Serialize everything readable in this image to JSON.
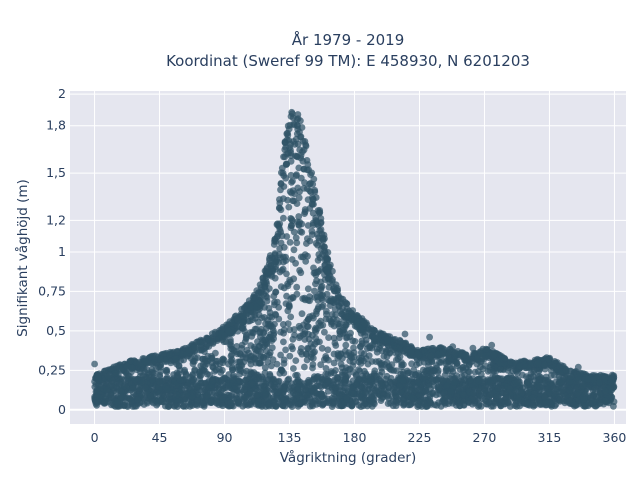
{
  "chart_data": {
    "type": "scatter",
    "title_line1": "År 1979 - 2019",
    "title_line2": "Koordinat (Sweref 99 TM): E 458930, N 6201203",
    "xlabel": "Vågriktning (grader)",
    "ylabel": "Signifikant våghöjd (m)",
    "xlim": [
      -17,
      368
    ],
    "ylim": [
      -0.09,
      2.02
    ],
    "x_ticks": [
      0,
      45,
      90,
      135,
      180,
      225,
      270,
      315,
      360
    ],
    "x_tick_labels": [
      "0",
      "45",
      "90",
      "135",
      "180",
      "225",
      "270",
      "315",
      "360"
    ],
    "y_ticks": [
      0,
      0.25,
      0.5,
      0.75,
      1,
      1.2,
      1.5,
      1.8,
      2
    ],
    "y_tick_labels": [
      "0",
      "0,25",
      "0,5",
      "0,75",
      "1",
      "1,2",
      "1,5",
      "1,8",
      "2"
    ],
    "grid": true,
    "legend": "none",
    "colors": {
      "marker": "#2f5366",
      "plot_background": "#e5e6ef",
      "grid": "#ffffff",
      "text": "#2a3f5f"
    },
    "envelope": {
      "note": "dense point cloud; upper envelope of observed Hs by direction",
      "x": [
        0,
        20,
        45,
        60,
        75,
        90,
        100,
        110,
        115,
        120,
        125,
        128,
        132,
        135,
        140,
        145,
        150,
        155,
        160,
        165,
        170,
        180,
        195,
        210,
        225,
        240,
        260,
        270,
        290,
        315,
        330,
        345,
        360
      ],
      "y_max": [
        0.22,
        0.3,
        0.35,
        0.38,
        0.45,
        0.53,
        0.62,
        0.72,
        0.8,
        0.92,
        1.1,
        1.4,
        1.72,
        1.88,
        1.9,
        1.78,
        1.55,
        1.32,
        1.05,
        0.88,
        0.72,
        0.62,
        0.5,
        0.45,
        0.38,
        0.4,
        0.35,
        0.4,
        0.3,
        0.33,
        0.25,
        0.22,
        0.22
      ],
      "y_min": [
        0.03,
        0.02,
        0.02,
        0.02,
        0.02,
        0.02,
        0.02,
        0.02,
        0.02,
        0.02,
        0.02,
        0.02,
        0.02,
        0.02,
        0.02,
        0.02,
        0.02,
        0.02,
        0.02,
        0.02,
        0.02,
        0.02,
        0.02,
        0.02,
        0.02,
        0.02,
        0.02,
        0.02,
        0.02,
        0.02,
        0.02,
        0.02,
        0.02
      ]
    },
    "outliers": [
      {
        "x": 0,
        "y": 0.29
      },
      {
        "x": 25,
        "y": 0.31
      },
      {
        "x": 40,
        "y": 0.34
      },
      {
        "x": 52,
        "y": 0.35
      },
      {
        "x": 65,
        "y": 0.38
      },
      {
        "x": 82,
        "y": 0.42
      },
      {
        "x": 95,
        "y": 0.55
      },
      {
        "x": 103,
        "y": 0.6
      },
      {
        "x": 108,
        "y": 0.65
      },
      {
        "x": 118,
        "y": 0.88
      },
      {
        "x": 200,
        "y": 0.48
      },
      {
        "x": 215,
        "y": 0.48
      },
      {
        "x": 232,
        "y": 0.46
      },
      {
        "x": 248,
        "y": 0.4
      },
      {
        "x": 262,
        "y": 0.39
      },
      {
        "x": 275,
        "y": 0.41
      },
      {
        "x": 313,
        "y": 0.33
      },
      {
        "x": 335,
        "y": 0.27
      }
    ]
  }
}
